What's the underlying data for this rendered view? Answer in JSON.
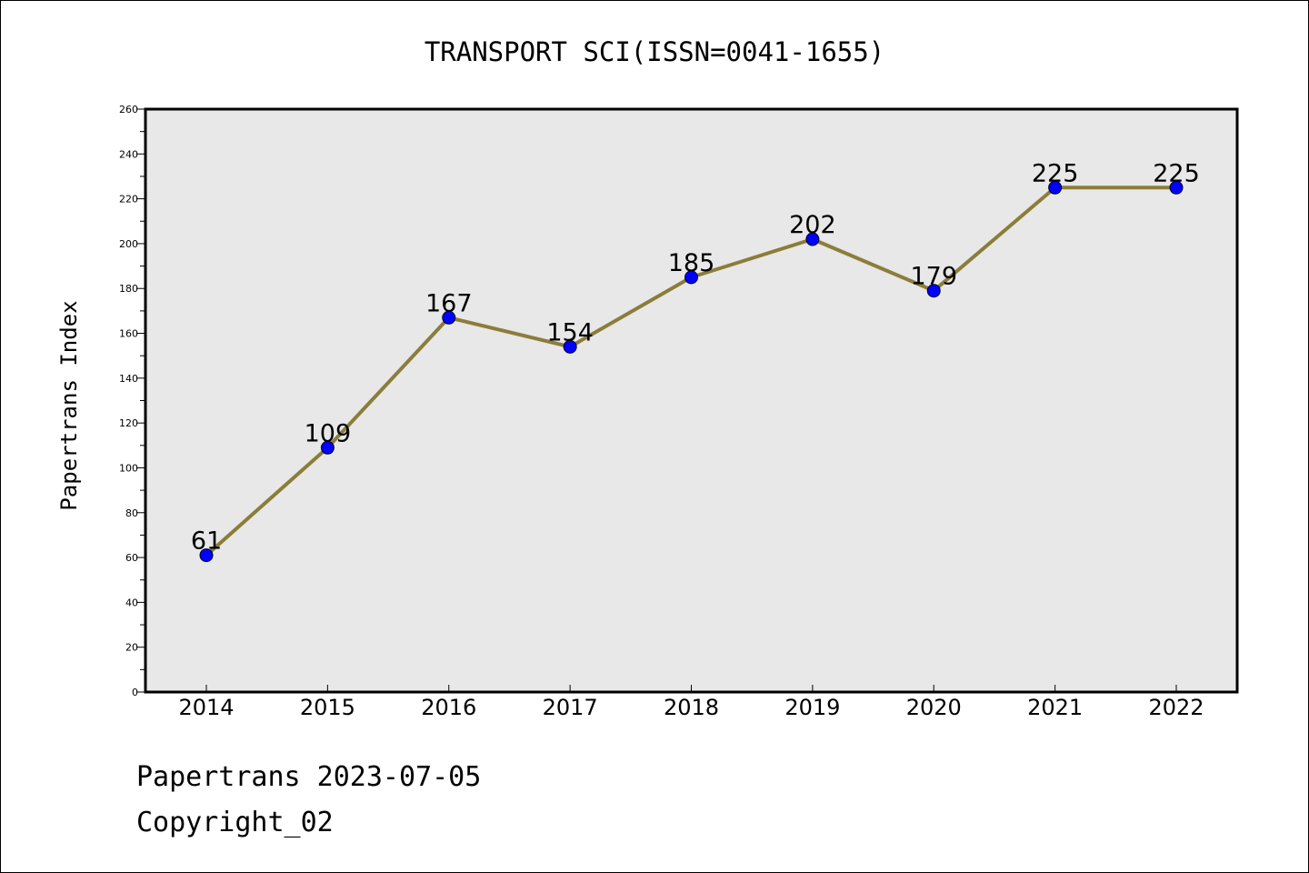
{
  "chart_data": {
    "type": "line",
    "title": "TRANSPORT SCI(ISSN=0041-1655)",
    "xlabel": "",
    "ylabel": "Papertrans Index",
    "categories": [
      "2014",
      "2015",
      "2016",
      "2017",
      "2018",
      "2019",
      "2020",
      "2021",
      "2022"
    ],
    "values": [
      61,
      109,
      167,
      154,
      185,
      202,
      179,
      225,
      225
    ],
    "data_labels": [
      "61",
      "109",
      "167",
      "154",
      "185",
      "202",
      "179",
      "225",
      "225"
    ],
    "ylim": [
      0,
      260
    ],
    "y_ticks": [
      0,
      20,
      40,
      60,
      80,
      100,
      120,
      140,
      160,
      180,
      200,
      220,
      240,
      260
    ],
    "y_tick_labels": [
      "0",
      "20",
      "40",
      "60",
      "80",
      "100",
      "120",
      "140",
      "160",
      "180",
      "200",
      "220",
      "240",
      "260"
    ],
    "grid": false,
    "line_color": "#8b7d3a",
    "marker_color": "#0000ff",
    "plot_background": "#e8e8e8"
  },
  "footer": {
    "date_line": "Papertrans 2023-07-05",
    "copyright": "Copyright_02"
  }
}
